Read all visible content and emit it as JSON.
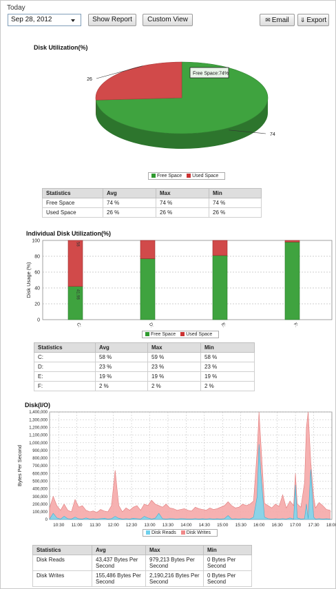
{
  "header": {
    "period_label": "Today",
    "date_value": "Sep 28, 2012",
    "show_report_label": "Show Report",
    "custom_view_label": "Custom View",
    "email_label": "Email",
    "export_label": "Export"
  },
  "disk_utilization": {
    "title": "Disk Utilization(%)",
    "tooltip": "Free Space:74%",
    "chart_data": {
      "type": "pie",
      "labels": [
        "Free Space",
        "Used Space"
      ],
      "values": [
        74,
        26
      ],
      "value_labels": [
        "74",
        "26"
      ],
      "colors": [
        "#3fa33f",
        "#d14a4a"
      ],
      "legend": "bottom"
    },
    "legend": [
      {
        "label": "Free Space",
        "color": "#2f9a2f"
      },
      {
        "label": "Used Space",
        "color": "#cc3333"
      }
    ],
    "stats": {
      "headers": [
        "Statistics",
        "Avg",
        "Max",
        "Min"
      ],
      "rows": [
        [
          "Free Space",
          "74 %",
          "74 %",
          "74 %"
        ],
        [
          "Used Space",
          "26 %",
          "26 %",
          "26 %"
        ]
      ]
    }
  },
  "individual_disk": {
    "title": "Individual Disk Utilization(%)",
    "chart_data": {
      "type": "bar",
      "stacked": true,
      "categories": [
        "C:",
        "D:",
        "E:",
        "F:"
      ],
      "series": [
        {
          "name": "Free Space",
          "values": [
            41.98,
            77,
            81,
            98
          ],
          "color": "#3fa33f"
        },
        {
          "name": "Used Space",
          "values": [
            58.02,
            23,
            19,
            2
          ],
          "color": "#d14a4a"
        }
      ],
      "bar_labels": {
        "free": [
          "41.98",
          "",
          "",
          ""
        ],
        "used": [
          "58",
          "",
          "",
          ""
        ]
      },
      "ylabel": "Disk Usage (%)",
      "yticks": [
        0,
        20,
        40,
        60,
        80,
        100
      ],
      "ylim": [
        0,
        100
      ],
      "grid": true,
      "legend": "bottom"
    },
    "legend": [
      {
        "label": "Free Space",
        "color": "#2f9a2f"
      },
      {
        "label": "Used Space",
        "color": "#cc3333"
      }
    ],
    "stats": {
      "headers": [
        "Statistics",
        "Avg",
        "Max",
        "Min"
      ],
      "rows": [
        [
          "C:",
          "58 %",
          "59 %",
          "58 %"
        ],
        [
          "D:",
          "23 %",
          "23 %",
          "23 %"
        ],
        [
          "E:",
          "19 %",
          "19 %",
          "19 %"
        ],
        [
          "F:",
          "2 %",
          "2 %",
          "2 %"
        ]
      ]
    }
  },
  "disk_io": {
    "title": "Disk(I/O)",
    "chart_data": {
      "type": "area",
      "ylabel": "Bytes Per Second",
      "ylim": [
        0,
        1400000
      ],
      "yticks": [
        0,
        100000,
        200000,
        300000,
        400000,
        500000,
        600000,
        700000,
        800000,
        900000,
        1000000,
        1100000,
        1200000,
        1300000,
        1400000
      ],
      "ytick_labels": [
        "0",
        "100,000",
        "200,000",
        "300,000",
        "400,000",
        "500,000",
        "600,000",
        "700,000",
        "800,000",
        "900,000",
        "1,000,000",
        "1,100,000",
        "1,200,000",
        "1,300,000",
        "1,400,000"
      ],
      "xtick_labels": [
        "10:30",
        "11:00",
        "11:30",
        "12:00",
        "12:30",
        "13:00",
        "13:30",
        "14:00",
        "14:30",
        "15:00",
        "15:30",
        "16:00",
        "16:30",
        "17:00",
        "17:30",
        "18:00"
      ],
      "xlim": [
        10.25,
        18.0
      ],
      "x": [
        10.25,
        10.35,
        10.45,
        10.55,
        10.65,
        10.75,
        10.85,
        10.95,
        11.05,
        11.15,
        11.25,
        11.35,
        11.45,
        11.55,
        11.65,
        11.75,
        11.85,
        11.95,
        12.05,
        12.15,
        12.25,
        12.35,
        12.45,
        12.55,
        12.65,
        12.75,
        12.85,
        12.95,
        13.05,
        13.15,
        13.25,
        13.35,
        13.45,
        13.55,
        13.65,
        13.75,
        13.85,
        13.95,
        14.05,
        14.15,
        14.25,
        14.35,
        14.45,
        14.55,
        14.65,
        14.75,
        14.85,
        14.95,
        15.05,
        15.15,
        15.25,
        15.35,
        15.45,
        15.55,
        15.65,
        15.75,
        15.85,
        15.95,
        16.0,
        16.05,
        16.15,
        16.25,
        16.35,
        16.45,
        16.55,
        16.65,
        16.75,
        16.85,
        16.95,
        17.0,
        17.05,
        17.15,
        17.25,
        17.3,
        17.35,
        17.42,
        17.5,
        17.55,
        17.65,
        17.75,
        17.85,
        17.95
      ],
      "series": [
        {
          "name": "Disk Reads",
          "color": "#7fd7ee",
          "values": [
            5000,
            80000,
            20000,
            5000,
            40000,
            10000,
            5000,
            30000,
            8000,
            5000,
            20000,
            5000,
            8000,
            5000,
            10000,
            15000,
            5000,
            10000,
            40000,
            15000,
            5000,
            10000,
            5000,
            15000,
            10000,
            5000,
            40000,
            20000,
            5000,
            15000,
            80000,
            10000,
            5000,
            10000,
            8000,
            5000,
            10000,
            8000,
            5000,
            5000,
            10000,
            5000,
            8000,
            5000,
            10000,
            5000,
            8000,
            5000,
            10000,
            50000,
            5000,
            8000,
            5000,
            10000,
            8000,
            5000,
            30000,
            300000,
            980000,
            600000,
            30000,
            10000,
            5000,
            8000,
            5000,
            10000,
            5000,
            20000,
            5000,
            450000,
            20000,
            5000,
            10000,
            200000,
            10000,
            650000,
            30000,
            5000,
            10000,
            5000,
            8000,
            5000
          ]
        },
        {
          "name": "Disk Writes",
          "color": "#f5a9a9",
          "values": [
            150000,
            300000,
            180000,
            120000,
            200000,
            120000,
            100000,
            260000,
            160000,
            180000,
            120000,
            100000,
            110000,
            90000,
            130000,
            110000,
            100000,
            180000,
            640000,
            180000,
            100000,
            150000,
            120000,
            160000,
            180000,
            120000,
            200000,
            180000,
            250000,
            200000,
            180000,
            160000,
            200000,
            150000,
            140000,
            120000,
            130000,
            140000,
            120000,
            110000,
            160000,
            140000,
            130000,
            120000,
            150000,
            130000,
            140000,
            160000,
            180000,
            230000,
            180000,
            150000,
            160000,
            200000,
            180000,
            200000,
            240000,
            900000,
            1400000,
            1000000,
            210000,
            180000,
            150000,
            200000,
            170000,
            320000,
            150000,
            240000,
            180000,
            600000,
            200000,
            160000,
            480000,
            1200000,
            1400000,
            750000,
            300000,
            150000,
            220000,
            180000,
            130000,
            120000
          ]
        }
      ],
      "grid": true,
      "legend": "bottom"
    },
    "legend": [
      {
        "label": "Disk Reads",
        "color": "#6fd0ec"
      },
      {
        "label": "Disk Writes",
        "color": "#f08a8a"
      }
    ],
    "stats": {
      "headers": [
        "Statistics",
        "Avg",
        "Max",
        "Min"
      ],
      "rows": [
        [
          "Disk Reads",
          "43,437 Bytes Per Second",
          "979,213 Bytes Per Second",
          "0 Bytes Per Second"
        ],
        [
          "Disk Writes",
          "155,486 Bytes Per Second",
          "2,190,216 Bytes Per Second",
          "0 Bytes Per Second"
        ]
      ]
    }
  }
}
